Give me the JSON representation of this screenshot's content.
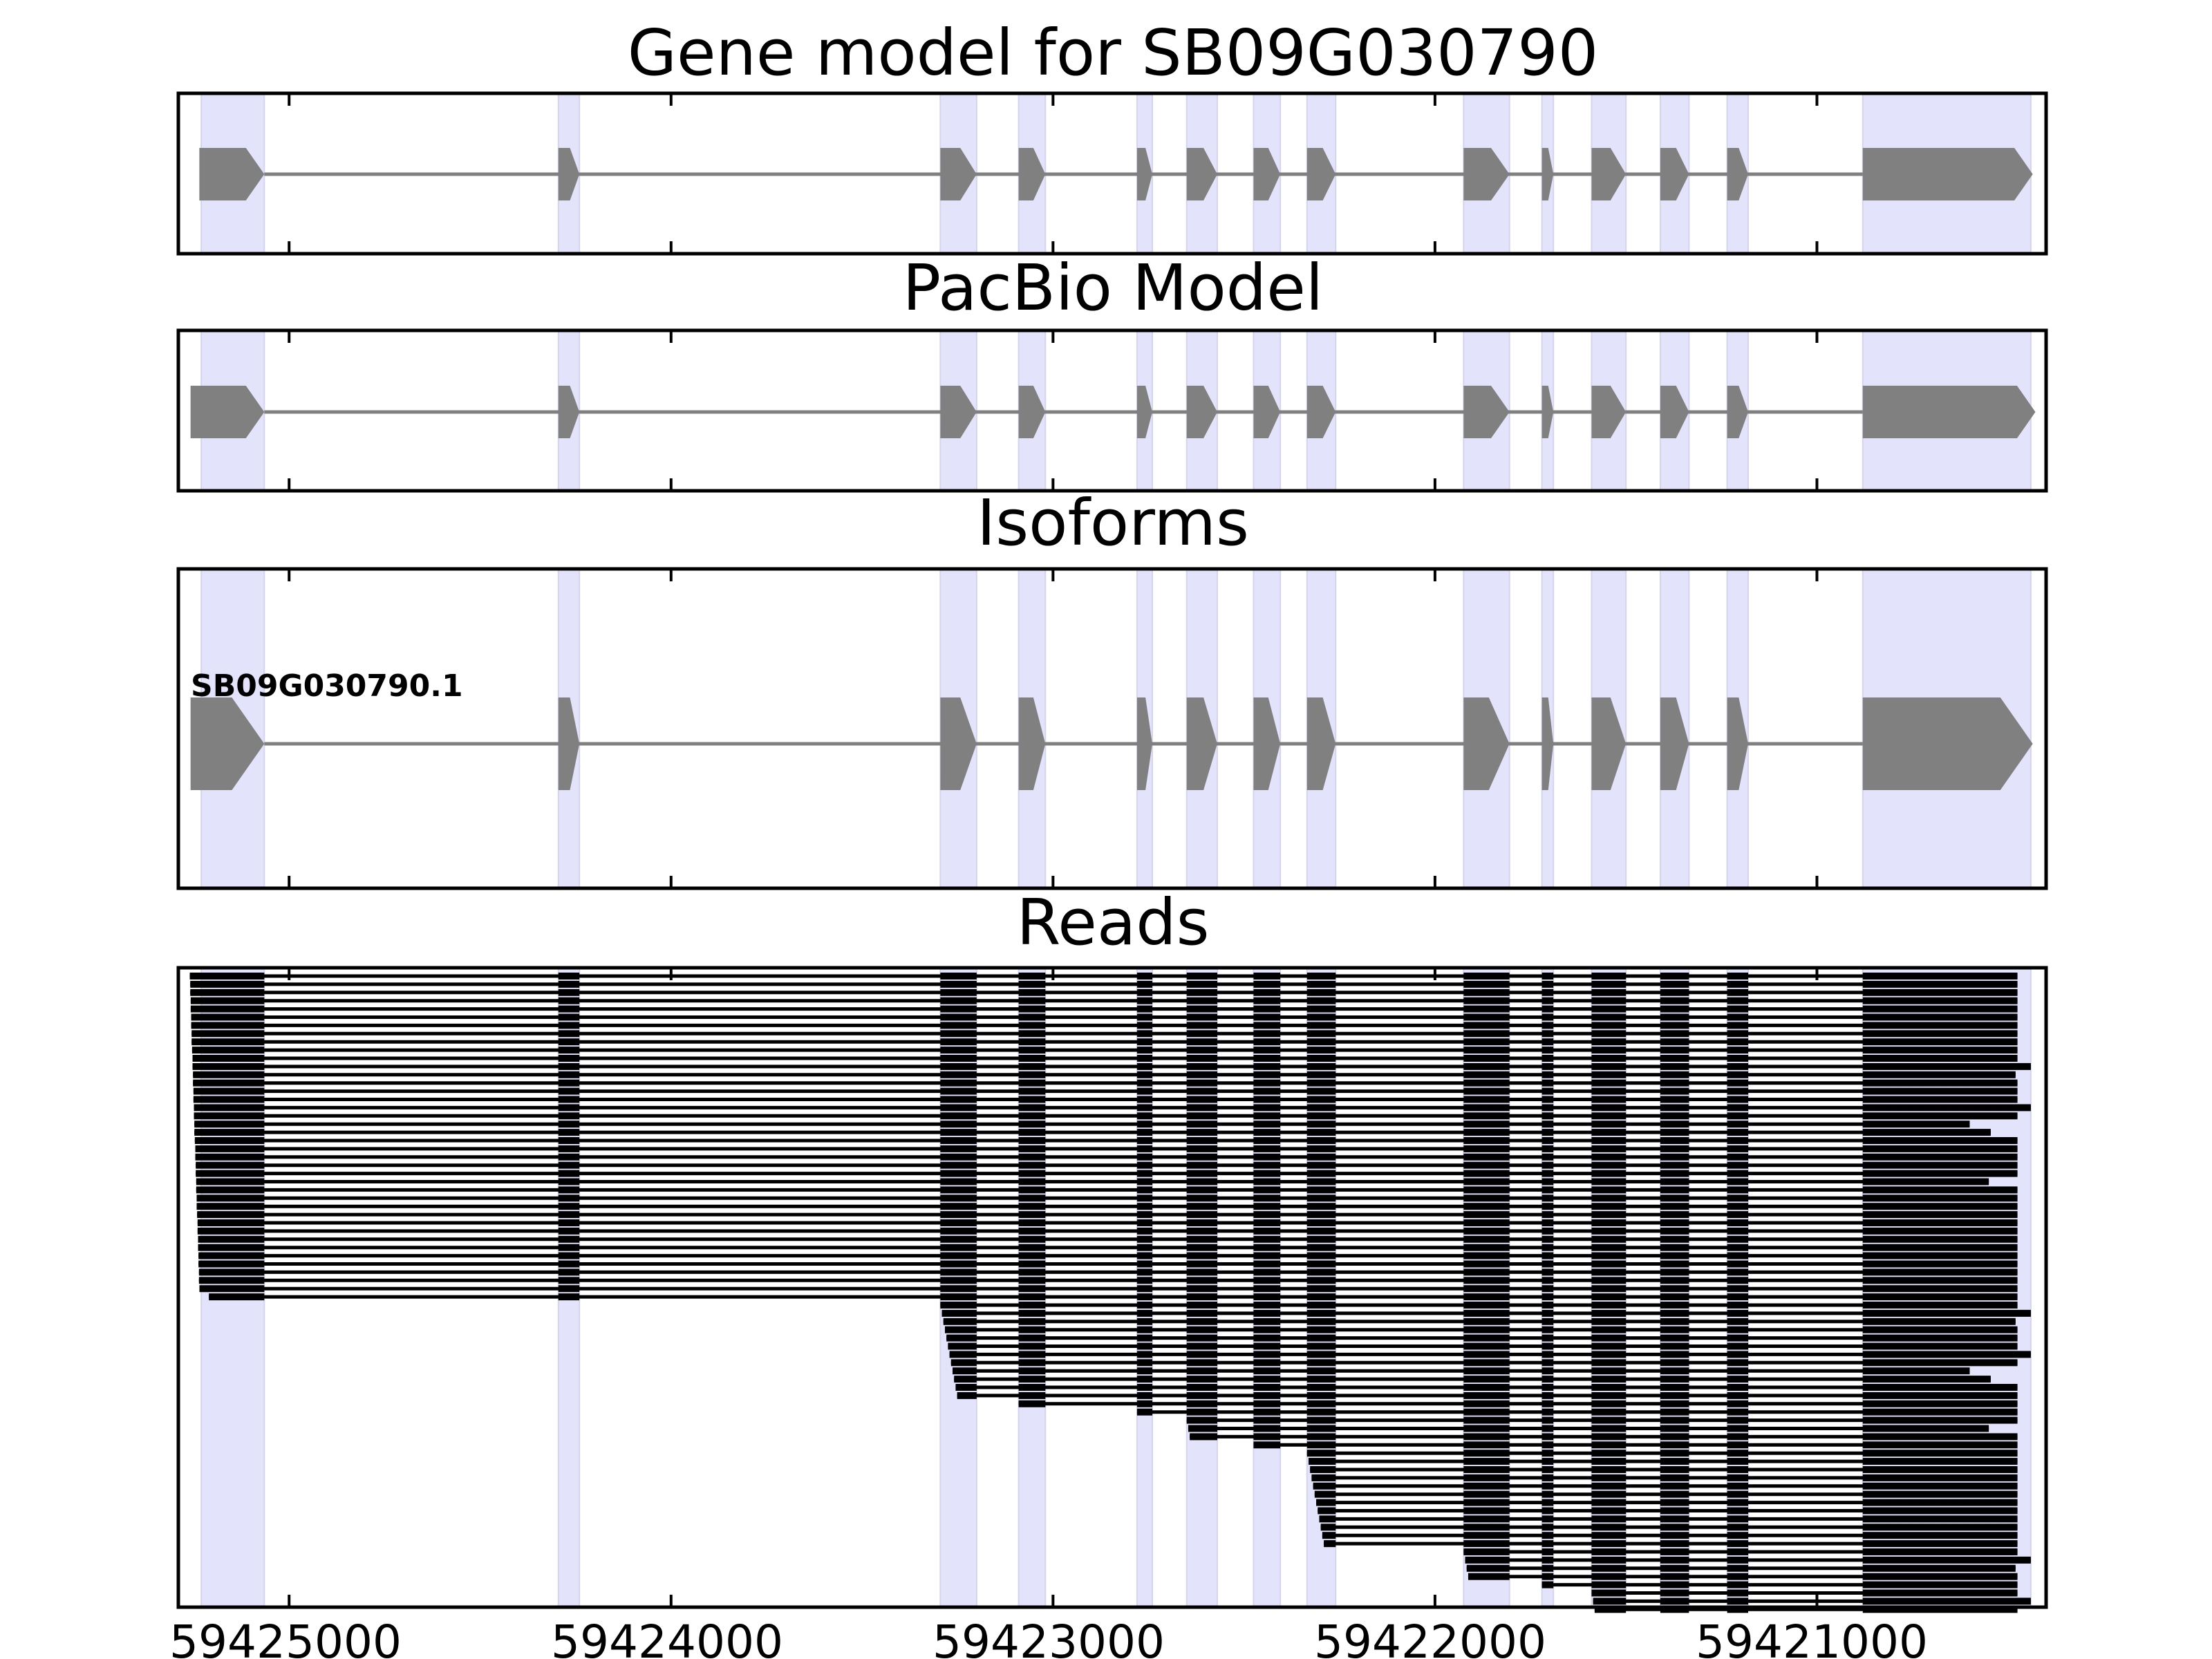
{
  "figure": {
    "panels": [
      {
        "id": "gene-model",
        "title": "Gene model for SB09G030790"
      },
      {
        "id": "pacbio-model",
        "title": "PacBio Model"
      },
      {
        "id": "isoforms",
        "title": "Isoforms"
      },
      {
        "id": "reads",
        "title": "Reads"
      }
    ],
    "isoform_label": "SB09G030790.1",
    "x_ticks": [
      {
        "value": 59425000,
        "label": "59425000"
      },
      {
        "value": 59424000,
        "label": "59424000"
      },
      {
        "value": 59423000,
        "label": "59423000"
      },
      {
        "value": 59422000,
        "label": "59422000"
      },
      {
        "value": 59421000,
        "label": "59421000"
      }
    ],
    "colors": {
      "exon_fill": "#808080",
      "intron_line": "#808080",
      "highlight": "#e3e3fb",
      "read": "#000000",
      "frame": "#000000"
    }
  },
  "chart_data": {
    "type": "gene_structure",
    "strand": "minus",
    "x_axis": {
      "xlim": [
        59425290,
        59420400
      ],
      "reversed": true,
      "ticks": [
        59425000,
        59424000,
        59423000,
        59422000,
        59421000
      ]
    },
    "exons": [
      [
        59425230,
        59425065
      ],
      [
        59424295,
        59424240
      ],
      [
        59423295,
        59423200
      ],
      [
        59423090,
        59423020
      ],
      [
        59422780,
        59422740
      ],
      [
        59422650,
        59422570
      ],
      [
        59422475,
        59422405
      ],
      [
        59422335,
        59422260
      ],
      [
        59421925,
        59421805
      ],
      [
        59421720,
        59421690
      ],
      [
        59421590,
        59421500
      ],
      [
        59421410,
        59421335
      ],
      [
        59421235,
        59421180
      ],
      [
        59420880,
        59420440
      ]
    ],
    "gene_model": {
      "start": 59425235,
      "end": 59420435
    },
    "pacbio_model": {
      "start": 59425258,
      "end": 59420428
    },
    "isoform": {
      "start": 59425258,
      "end": 59420435
    },
    "reads_start_groups": [
      {
        "exon_start_index": 0,
        "count": 40
      },
      {
        "exon_start_index": 2,
        "count": 12
      },
      {
        "exon_start_index": 3,
        "count": 1
      },
      {
        "exon_start_index": 4,
        "count": 1
      },
      {
        "exon_start_index": 5,
        "count": 3
      },
      {
        "exon_start_index": 6,
        "count": 1
      },
      {
        "exon_start_index": 7,
        "count": 12
      },
      {
        "exon_start_index": 8,
        "count": 4
      },
      {
        "exon_start_index": 9,
        "count": 1
      },
      {
        "exon_start_index": 10,
        "count": 3
      }
    ]
  }
}
